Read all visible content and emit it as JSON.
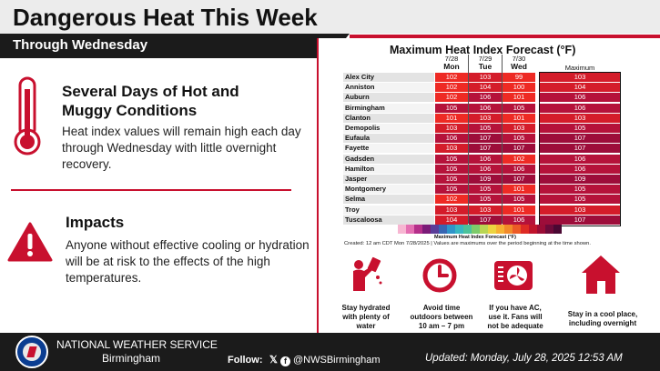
{
  "header": {
    "title": "Dangerous Heat This Week",
    "subtitle": "Through Wednesday"
  },
  "section1": {
    "title": "Several Days of Hot and Muggy Conditions",
    "body": "Heat index values will remain high each day through Wednesday with little overnight recovery.",
    "icon": "thermometer-icon"
  },
  "section2": {
    "title": "Impacts",
    "body": "Anyone without effective cooling or hydration will be at risk to the effects of the high temperatures.",
    "icon": "warning-icon"
  },
  "chart_data": {
    "type": "table",
    "title": "Maximum Heat Index Forecast (°F)",
    "columns": [
      {
        "date": "7/28",
        "day": "Mon"
      },
      {
        "date": "7/29",
        "day": "Tue"
      },
      {
        "date": "7/30",
        "day": "Wed"
      }
    ],
    "max_label": "Maximum",
    "rows": [
      {
        "city": "Alex City",
        "values": [
          102,
          103,
          99
        ],
        "max": 103
      },
      {
        "city": "Anniston",
        "values": [
          102,
          104,
          100
        ],
        "max": 104
      },
      {
        "city": "Auburn",
        "values": [
          102,
          106,
          101
        ],
        "max": 106
      },
      {
        "city": "Birmingham",
        "values": [
          105,
          106,
          105
        ],
        "max": 106
      },
      {
        "city": "Clanton",
        "values": [
          101,
          103,
          101
        ],
        "max": 103
      },
      {
        "city": "Demopolis",
        "values": [
          103,
          105,
          103
        ],
        "max": 105
      },
      {
        "city": "Eufaula",
        "values": [
          106,
          107,
          105
        ],
        "max": 107
      },
      {
        "city": "Fayette",
        "values": [
          103,
          107,
          107
        ],
        "max": 107
      },
      {
        "city": "Gadsden",
        "values": [
          105,
          106,
          102
        ],
        "max": 106
      },
      {
        "city": "Hamilton",
        "values": [
          105,
          106,
          106
        ],
        "max": 106
      },
      {
        "city": "Jasper",
        "values": [
          105,
          109,
          107
        ],
        "max": 109
      },
      {
        "city": "Montgomery",
        "values": [
          105,
          105,
          101
        ],
        "max": 105
      },
      {
        "city": "Selma",
        "values": [
          102,
          105,
          105
        ],
        "max": 105
      },
      {
        "city": "Troy",
        "values": [
          103,
          103,
          101
        ],
        "max": 103
      },
      {
        "city": "Tuscaloosa",
        "values": [
          104,
          107,
          106
        ],
        "max": 107
      }
    ],
    "legend_label": "Maximum Heat Index Forecast (°F)",
    "created": "Created: 12 am CDT Mon 7/28/2025  |  Values are maximums over the period beginning at the time shown."
  },
  "colors": {
    "low": "#ee2a24",
    "mid": "#d41c2a",
    "high": "#b5123a",
    "top": "#9d0d3a",
    "accent": "#c8102e"
  },
  "tips": [
    {
      "icon": "drink-water-icon",
      "text": "Stay hydrated with plenty of water"
    },
    {
      "icon": "clock-icon",
      "text": "Avoid time outdoors between 10 am – 7 pm"
    },
    {
      "icon": "air-conditioner-icon",
      "text": "If you have AC, use it. Fans will not be adequate"
    },
    {
      "icon": "house-icon",
      "text": "Stay in a cool place, including overnight"
    }
  ],
  "footer": {
    "agency": "NATIONAL WEATHER SERVICE",
    "office": "Birmingham",
    "follow": "Follow:",
    "social": "@NWSBirmingham",
    "updated": "Updated: Monday, July 28, 2025 12:53 AM"
  }
}
